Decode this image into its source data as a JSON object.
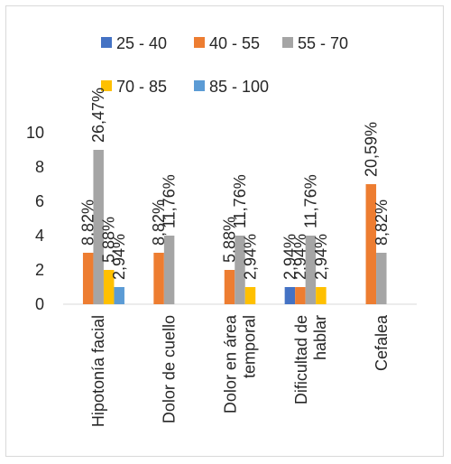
{
  "chart_data": {
    "type": "bar",
    "categories": [
      "Hipotonía facial",
      "Dolor de cuello",
      "Dolor en área temporal",
      "Dificultad de hablar",
      "Cefalea"
    ],
    "category_lines": [
      [
        "Hipotonía facial"
      ],
      [
        "Dolor de cuello"
      ],
      [
        "Dolor en área",
        "temporal"
      ],
      [
        "Dificultad de",
        "hablar"
      ],
      [
        "Cefalea"
      ]
    ],
    "series": [
      {
        "name": "25 - 40",
        "color": "#4472c4",
        "values": [
          0,
          0,
          0,
          1,
          0
        ],
        "labels": [
          "",
          "",
          "",
          "2,94%",
          ""
        ]
      },
      {
        "name": "40 - 55",
        "color": "#ed7d31",
        "values": [
          3,
          3,
          2,
          1,
          7
        ],
        "labels": [
          "8,82%",
          "8,82%",
          "5,88%",
          "2,94%",
          "20,59%"
        ]
      },
      {
        "name": "55 - 70",
        "color": "#a5a5a5",
        "values": [
          9,
          4,
          4,
          4,
          3
        ],
        "labels": [
          "26,47%",
          "11,76%",
          "11,76%",
          "11,76%",
          "8,82%"
        ]
      },
      {
        "name": "70 - 85",
        "color": "#ffc000",
        "values": [
          2,
          0,
          1,
          1,
          0
        ],
        "labels": [
          "5,88%",
          "",
          "2,94%",
          "2,94%",
          ""
        ]
      },
      {
        "name": "85 - 100",
        "color": "#5b9bd5",
        "values": [
          1,
          0,
          0,
          0,
          0
        ],
        "labels": [
          "2,94%",
          "",
          "",
          "",
          ""
        ]
      }
    ],
    "ylim": [
      0,
      10
    ],
    "yticks": [
      0,
      2,
      4,
      6,
      8,
      10
    ],
    "ytick_labels": [
      "0",
      "2",
      "4",
      "6",
      "8",
      "10"
    ],
    "grid": false,
    "legend_position": "top",
    "title": "",
    "xlabel": "",
    "ylabel": ""
  }
}
